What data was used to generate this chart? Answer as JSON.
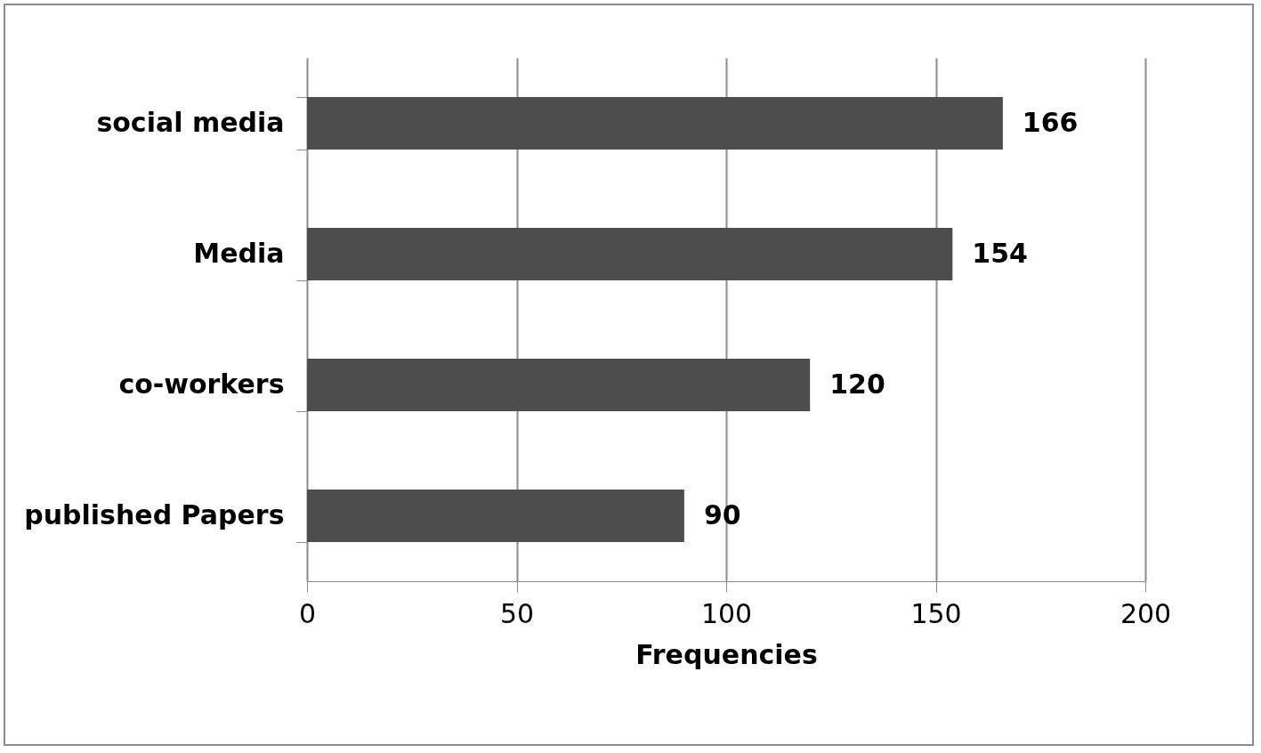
{
  "chart_data": {
    "type": "bar",
    "orientation": "horizontal",
    "xlabel": "Frequencies",
    "categories": [
      "social media",
      "Media",
      "co-workers",
      "published Papers"
    ],
    "values": [
      166,
      154,
      120,
      90
    ],
    "color": "#4d4d4d",
    "xlim": [
      0,
      200
    ],
    "xticks": [
      0,
      50,
      100,
      150,
      200
    ],
    "grid": "x",
    "data_labels": true
  }
}
